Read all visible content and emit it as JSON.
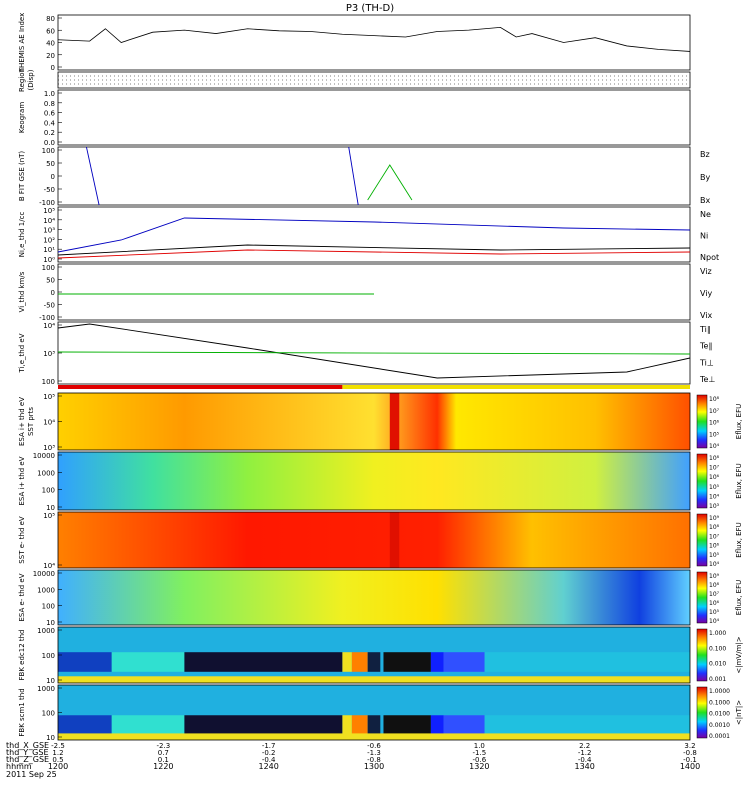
{
  "title": "P3 (TH-D)",
  "time_axis": {
    "start": 1200,
    "end": 1400,
    "ticks": [
      "1200",
      "1220",
      "1240",
      "1300",
      "1320",
      "1340",
      "1400"
    ],
    "row_labels": [
      "thd_X_GSE",
      "thd_Y_GSE",
      "thd_Z_GSE",
      "hhmm",
      "2011 Sep 25"
    ],
    "rows": [
      [
        "-2.5",
        "-2.3",
        "-1.7",
        "-0.6",
        "1.0",
        "2.2",
        "3.2"
      ],
      [
        "1.2",
        "0.7",
        "-0.2",
        "-1.3",
        "-1.5",
        "-1.2",
        "-0.8"
      ],
      [
        "0.5",
        "0.1",
        "-0.4",
        "-0.8",
        "-0.6",
        "-0.4",
        "-0.1"
      ]
    ],
    "date": "2011 Sep 25"
  },
  "chart_data": [
    {
      "id": "ae",
      "type": "line",
      "ylabel": "THEMIS AE Index",
      "ylim": [
        0,
        80
      ],
      "yticks": [
        "80",
        "60",
        "40",
        "20",
        "0"
      ],
      "x": [
        1200,
        1210,
        1215,
        1220,
        1230,
        1240,
        1250,
        1260,
        1270,
        1280,
        1290,
        1300,
        1310,
        1320,
        1330,
        1340,
        1345,
        1350,
        1360,
        1370,
        1380,
        1390,
        1400
      ],
      "y": [
        44,
        42,
        60,
        40,
        55,
        58,
        53,
        60,
        57,
        56,
        52,
        50,
        48,
        56,
        58,
        62,
        48,
        53,
        40,
        47,
        35,
        30,
        27
      ],
      "series": [
        {
          "name": "",
          "color": "#000000"
        }
      ]
    },
    {
      "id": "region",
      "type": "table",
      "ylabel": "Region",
      "ylabel2": "(Disp)"
    },
    {
      "id": "keogram",
      "type": "line",
      "ylabel": "Keogram",
      "ylim": [
        0,
        1
      ],
      "yticks": [
        "1.0",
        "0.8",
        "0.6",
        "0.4",
        "0.2",
        "0.0"
      ]
    },
    {
      "id": "bfgm",
      "type": "line",
      "ylabel": "B FIT GSE (nT)",
      "ylim": [
        -100,
        100
      ],
      "yticks": [
        "100",
        "50",
        "0",
        "-50",
        "-100"
      ],
      "legend": [
        "Bz",
        "By",
        "Bx"
      ],
      "legend_colors": [
        "#e00000",
        "#00b000",
        "#0000c0"
      ]
    },
    {
      "id": "density",
      "type": "line",
      "ylabel": "Ni,e_thd 1/cc",
      "ylim": [
        1,
        100000
      ],
      "scale": "log",
      "yticks": [
        "10⁵",
        "10⁴",
        "10³",
        "10²",
        "10¹",
        "10⁰"
      ],
      "legend": [
        "Ne",
        "Ni",
        "Npot"
      ],
      "legend_colors": [
        "#e00000",
        "#000000",
        "#0000c0"
      ]
    },
    {
      "id": "velocity",
      "type": "line",
      "ylabel": "Vi_thd km/s",
      "ylim": [
        -100,
        100
      ],
      "yticks": [
        "100",
        "50",
        "0",
        "-50",
        "-100"
      ],
      "legend": [
        "Viz",
        "Viy",
        "Vix"
      ],
      "legend_colors": [
        "#e00000",
        "#00b000",
        "#0000c0"
      ]
    },
    {
      "id": "temp",
      "type": "line",
      "ylabel": "Ti,e_thd eV",
      "ylim": [
        100,
        10000
      ],
      "scale": "log",
      "yticks": [
        "10⁴",
        "10³",
        "100"
      ],
      "legend": [
        "Ti∥",
        "Te∥",
        "Ti⊥",
        "Te⊥"
      ],
      "legend_colors": [
        "#00b000",
        "#000000",
        "#0000c0",
        "#e00000"
      ]
    },
    {
      "id": "espi",
      "type": "heatmap",
      "ylabel": "ESA i+ thd eV",
      "ylabel2": "SST prts",
      "yticks": [
        "10⁵",
        "10⁴",
        "10³"
      ],
      "cbar_label": "Eflux, EFU",
      "cbar_ticks": [
        "10⁸",
        "10⁷",
        "10⁶",
        "10⁵",
        "10⁴"
      ]
    },
    {
      "id": "esai",
      "type": "heatmap",
      "ylabel": "ESA i+ thd eV",
      "yticks": [
        "10000",
        "1000",
        "100",
        "10"
      ],
      "cbar_label": "Eflux, EFU",
      "cbar_ticks": [
        "10⁸",
        "10⁷",
        "10⁶",
        "10⁵",
        "10⁴",
        "10³"
      ]
    },
    {
      "id": "sste",
      "type": "heatmap",
      "ylabel": "SST e- thd eV",
      "yticks": [
        "10⁵",
        "10⁴"
      ],
      "cbar_label": "Eflux, EFU",
      "cbar_ticks": [
        "10⁹",
        "10⁸",
        "10⁷",
        "10⁶",
        "10⁵",
        "10⁴"
      ]
    },
    {
      "id": "esae",
      "type": "heatmap",
      "ylabel": "ESA e- thd eV",
      "yticks": [
        "10000",
        "1000",
        "100",
        "10"
      ],
      "cbar_label": "Eflux, EFU",
      "cbar_ticks": [
        "10⁹",
        "10⁸",
        "10⁷",
        "10⁶",
        "10⁵",
        "10⁴"
      ]
    },
    {
      "id": "fbk12",
      "type": "heatmap",
      "ylabel": "FBK edc12 thd",
      "yticks": [
        "1000",
        "100",
        "10"
      ],
      "cbar_label": "<|mV/m|>",
      "cbar_ticks": [
        "1.000",
        "0.100",
        "0.010",
        "0.001"
      ]
    },
    {
      "id": "fbkscm",
      "type": "heatmap",
      "ylabel": "FBK scm1 thd",
      "yticks": [
        "1000",
        "100",
        "10"
      ],
      "cbar_label": "<|nT|>",
      "cbar_ticks": [
        "1.0000",
        "0.1000",
        "0.0100",
        "0.0010",
        "0.0001"
      ]
    }
  ]
}
